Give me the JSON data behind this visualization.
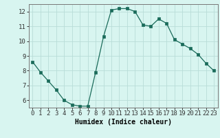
{
  "x": [
    0,
    1,
    2,
    3,
    4,
    5,
    6,
    7,
    8,
    9,
    10,
    11,
    12,
    13,
    14,
    15,
    16,
    17,
    18,
    19,
    20,
    21,
    22,
    23
  ],
  "y": [
    8.6,
    7.9,
    7.3,
    6.7,
    6.0,
    5.7,
    5.6,
    5.6,
    7.9,
    10.3,
    12.1,
    12.2,
    12.2,
    12.0,
    11.1,
    11.0,
    11.5,
    11.2,
    10.1,
    9.8,
    9.5,
    9.1,
    8.5,
    8.0
  ],
  "line_color": "#1a6b5a",
  "marker": "s",
  "marker_size": 2.5,
  "bg_color": "#d8f5f0",
  "grid_color": "#b8ddd8",
  "xlabel": "Humidex (Indice chaleur)",
  "ylim": [
    5.5,
    12.5
  ],
  "xlim": [
    -0.5,
    23.5
  ],
  "yticks": [
    6,
    7,
    8,
    9,
    10,
    11,
    12
  ],
  "xticks": [
    0,
    1,
    2,
    3,
    4,
    5,
    6,
    7,
    8,
    9,
    10,
    11,
    12,
    13,
    14,
    15,
    16,
    17,
    18,
    19,
    20,
    21,
    22,
    23
  ],
  "xlabel_fontsize": 7,
  "tick_fontsize": 6.5
}
